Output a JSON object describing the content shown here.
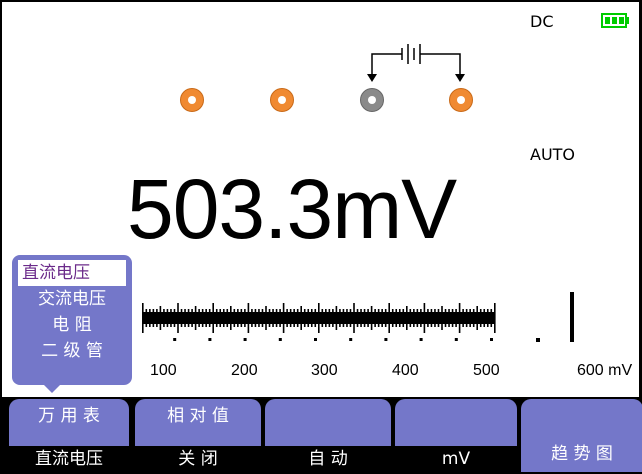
{
  "status": {
    "coupling": "DC",
    "range_mode": "AUTO",
    "battery_icon": "battery-full-icon",
    "battery_color": "#00cc00"
  },
  "reading": {
    "value": "503.3mV"
  },
  "jack_colors": {
    "active": "#f08a32",
    "common": "#8a8a8a"
  },
  "submenu": {
    "items": [
      "直流电压",
      "交流电压",
      "电 阻",
      "二 级 管"
    ],
    "selected_index": 0
  },
  "scale": {
    "labels": [
      "100",
      "200",
      "300",
      "400",
      "500",
      "600 mV"
    ],
    "level_mV": 503.3,
    "max_mV": 600
  },
  "softkeys": [
    {
      "top": "万 用 表",
      "bottom": "直流电压"
    },
    {
      "top": "相 对 值",
      "bottom": "关  闭"
    },
    {
      "top": "",
      "bottom": "自  动"
    },
    {
      "top": "",
      "bottom": "mV"
    },
    {
      "top": "趋 势 图",
      "bottom": ""
    }
  ],
  "accent_color": "#7477c9"
}
